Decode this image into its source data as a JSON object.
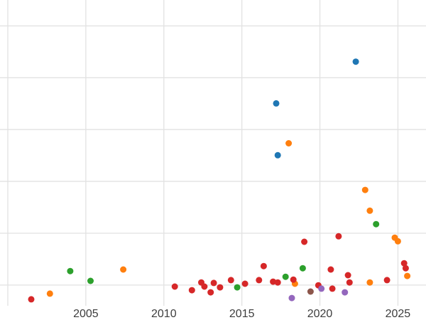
{
  "chart_data": {
    "type": "scatter",
    "title": "",
    "xlabel": "",
    "ylabel": "",
    "x_ticks": [
      2005,
      2010,
      2015,
      2020,
      2025
    ],
    "x_tick_labels": [
      "2005",
      "2010",
      "2015",
      "2020",
      "2025"
    ],
    "x_gridlines": [
      2000,
      2005,
      2010,
      2015,
      2020,
      2025
    ],
    "y_gridlines": [
      8,
      28,
      48,
      68,
      88,
      108
    ],
    "xlim": [
      1999.5,
      2026.8
    ],
    "ylim": [
      0,
      118
    ],
    "grid": true,
    "legend_position": "none",
    "y_axis_note": "y-axis unlabeled in image; values estimated from gridlines (20 units per gridline step)",
    "series": [
      {
        "name": "blue",
        "color": "#1f77b4",
        "points": [
          [
            2017.2,
            78.1
          ],
          [
            2017.3,
            58.1
          ],
          [
            2022.3,
            94.2
          ]
        ]
      },
      {
        "name": "orange",
        "color": "#ff7f0e",
        "points": [
          [
            2002.7,
            4.7
          ],
          [
            2007.4,
            14.0
          ],
          [
            2018.0,
            62.7
          ],
          [
            2018.4,
            8.5
          ],
          [
            2022.9,
            44.7
          ],
          [
            2023.2,
            36.7
          ],
          [
            2023.2,
            9.0
          ],
          [
            2024.8,
            26.3
          ],
          [
            2025.0,
            24.9
          ],
          [
            2025.6,
            11.5
          ]
        ]
      },
      {
        "name": "green",
        "color": "#2ca02c",
        "points": [
          [
            2004.0,
            13.4
          ],
          [
            2005.3,
            9.6
          ],
          [
            2014.7,
            7.1
          ],
          [
            2017.8,
            11.2
          ],
          [
            2018.9,
            14.5
          ],
          [
            2023.6,
            31.5
          ]
        ]
      },
      {
        "name": "red",
        "color": "#d62728",
        "points": [
          [
            2001.5,
            2.5
          ],
          [
            2010.7,
            7.4
          ],
          [
            2011.8,
            6.0
          ],
          [
            2012.4,
            9.0
          ],
          [
            2012.6,
            7.4
          ],
          [
            2013.0,
            5.2
          ],
          [
            2013.2,
            8.8
          ],
          [
            2013.6,
            7.1
          ],
          [
            2014.3,
            9.9
          ],
          [
            2015.2,
            8.5
          ],
          [
            2016.1,
            9.9
          ],
          [
            2016.4,
            15.3
          ],
          [
            2017.0,
            9.3
          ],
          [
            2017.3,
            9.0
          ],
          [
            2018.3,
            10.1
          ],
          [
            2019.0,
            24.7
          ],
          [
            2019.9,
            7.9
          ],
          [
            2020.7,
            14.0
          ],
          [
            2020.8,
            6.6
          ],
          [
            2021.2,
            26.8
          ],
          [
            2021.8,
            11.8
          ],
          [
            2021.9,
            9.0
          ],
          [
            2024.3,
            9.9
          ],
          [
            2025.4,
            16.4
          ],
          [
            2025.5,
            14.5
          ]
        ]
      },
      {
        "name": "purple",
        "color": "#9467bd",
        "points": [
          [
            2018.2,
            3.0
          ],
          [
            2020.1,
            6.6
          ],
          [
            2021.6,
            5.2
          ]
        ]
      },
      {
        "name": "brown",
        "color": "#8c564b",
        "points": [
          [
            2019.4,
            5.5
          ]
        ]
      }
    ]
  },
  "style": {
    "background_color": "#ffffff",
    "gridline_color": "#e2e2e2",
    "tick_label_color": "#3d3d3d"
  }
}
